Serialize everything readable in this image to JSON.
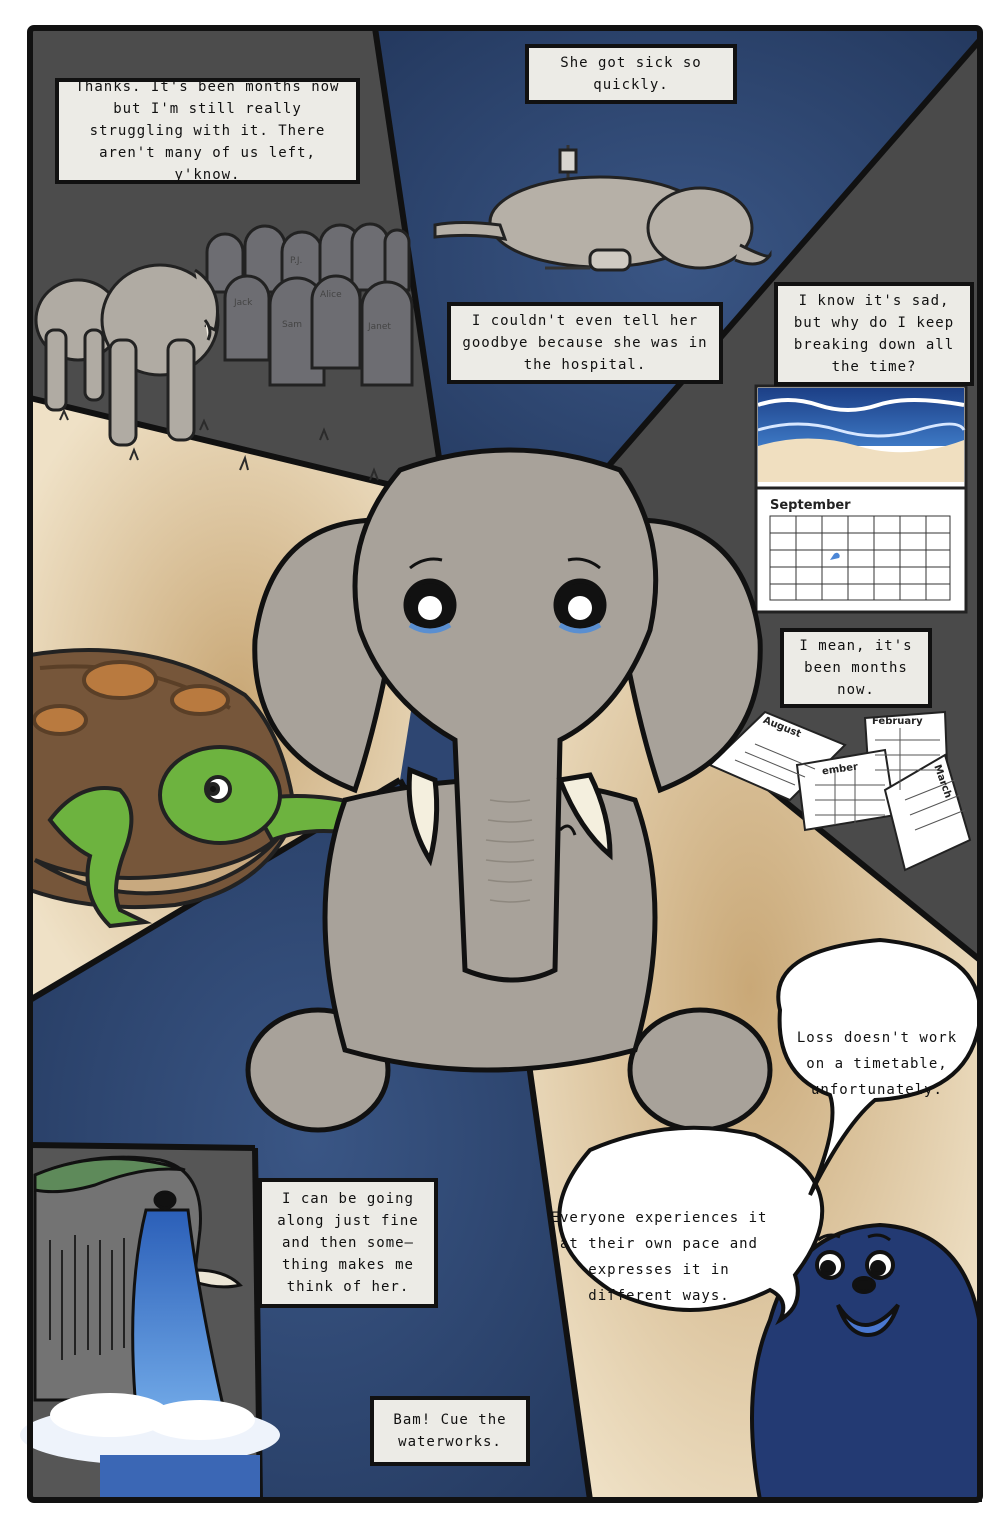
{
  "captions": {
    "graveyard": "Thanks. It's been months now but I'm still really struggling with it. There aren't many of us left, y'know.",
    "sick": "She got sick so quickly.",
    "hospital": "I couldn't even tell her goodbye because she was in the hospital.",
    "breaking": "I know it's sad, but why do I keep breaking down all the time?",
    "months": "I mean, it's been months now.",
    "trigger": "I can be going along just fine and then some—thing makes me think of her.",
    "bam": "Bam! Cue the waterworks."
  },
  "bubbles": {
    "timetable": "Loss doesn't work on a timetable, unfortunately.",
    "pace": "Everyone experiences it at their own pace and expresses it in different ways."
  },
  "calendars": {
    "september": "September",
    "august": "August",
    "february": "February",
    "ember": "ember",
    "march": "March"
  },
  "gravestones": {
    "jack": "Jack",
    "sam": "Sam",
    "alice": "Alice",
    "janet": "Janet",
    "pj": "P.J."
  },
  "icons": {
    "main": "crying-elephant",
    "left": "turtle",
    "bottom_right": "seal",
    "bottom_left": "crying-elephant-waterfall"
  },
  "colors": {
    "navy": "#2e4672",
    "dark_gray": "#4a4a4a",
    "beige": "#ead9bb",
    "elephant": "#a8a29a",
    "turtle_green": "#6db33f",
    "seal_blue": "#233a73",
    "caption_bg": "#ecebe6"
  }
}
